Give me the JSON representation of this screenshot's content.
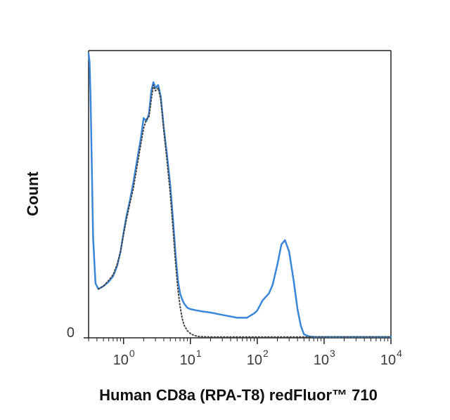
{
  "chart_data": {
    "type": "line",
    "title": "",
    "xlabel": "Human CD8a (RPA-T8) redFluor™ 710",
    "ylabel": "Count",
    "x_scale": "log",
    "xlim": [
      0.3,
      10000
    ],
    "ylim": [
      0,
      100
    ],
    "x_ticks": [
      {
        "value": 1,
        "base": "10",
        "exp": "0"
      },
      {
        "value": 10,
        "base": "10",
        "exp": "1"
      },
      {
        "value": 100,
        "base": "10",
        "exp": "2"
      },
      {
        "value": 1000,
        "base": "10",
        "exp": "3"
      },
      {
        "value": 10000,
        "base": "10",
        "exp": "4"
      }
    ],
    "y_ticks": [
      {
        "value": 0,
        "label": "0"
      }
    ],
    "grid": false,
    "legend": "none",
    "series": [
      {
        "style": "solid",
        "color": "#3b86d8",
        "x": [
          0.3,
          0.31,
          0.32,
          0.35,
          0.38,
          0.42,
          0.5,
          0.6,
          0.7,
          0.8,
          0.9,
          1.0,
          1.1,
          1.25,
          1.4,
          1.6,
          1.8,
          2.0,
          2.2,
          2.4,
          2.6,
          2.8,
          3.0,
          3.3,
          3.6,
          4.0,
          4.5,
          5.0,
          5.5,
          6.0,
          6.5,
          7.0,
          7.5,
          8,
          9,
          10,
          12,
          15,
          20,
          30,
          50,
          70,
          90,
          100,
          120,
          150,
          170,
          200,
          230,
          260,
          300,
          350,
          400,
          450,
          500,
          600,
          700,
          1000,
          2000,
          5000,
          10000
        ],
        "y": [
          99,
          96,
          85,
          35,
          19,
          17,
          18,
          19.5,
          21.5,
          25,
          30,
          36.5,
          42,
          48,
          54,
          62,
          69,
          76.5,
          75.5,
          78,
          86,
          89,
          87,
          88,
          84,
          73,
          63,
          53,
          41,
          29,
          20,
          15.5,
          13.5,
          12,
          10.5,
          10,
          9.6,
          9.2,
          8.8,
          8,
          7,
          7,
          8.5,
          9.5,
          13,
          15.5,
          18.5,
          25.5,
          32.5,
          34,
          30,
          20,
          10,
          4,
          1.2,
          0.5,
          0.3,
          0.3,
          0.3,
          0.3,
          0.3
        ]
      },
      {
        "style": "dotted",
        "color": "#444444",
        "x": [
          0.42,
          0.5,
          0.6,
          0.7,
          0.8,
          0.9,
          1.0,
          1.1,
          1.25,
          1.4,
          1.6,
          1.8,
          2.0,
          2.2,
          2.4,
          2.6,
          2.8,
          3.0,
          3.3,
          3.6,
          4.0,
          4.5,
          5.0,
          5.5,
          6.0,
          6.5,
          7.0,
          7.5,
          8,
          9,
          10,
          11,
          12,
          13,
          15,
          20,
          30,
          100,
          1000,
          10000
        ],
        "y": [
          17,
          18,
          20,
          22,
          25.5,
          30,
          36,
          41,
          47,
          52,
          60,
          67,
          73,
          76,
          77,
          83,
          88,
          86,
          87,
          83,
          72,
          61,
          50,
          38,
          26,
          17,
          11,
          7,
          4.5,
          2.5,
          1.5,
          1,
          0.7,
          0.5,
          0.4,
          0.3,
          0.3,
          0.3,
          0.3,
          0.3
        ]
      }
    ]
  }
}
